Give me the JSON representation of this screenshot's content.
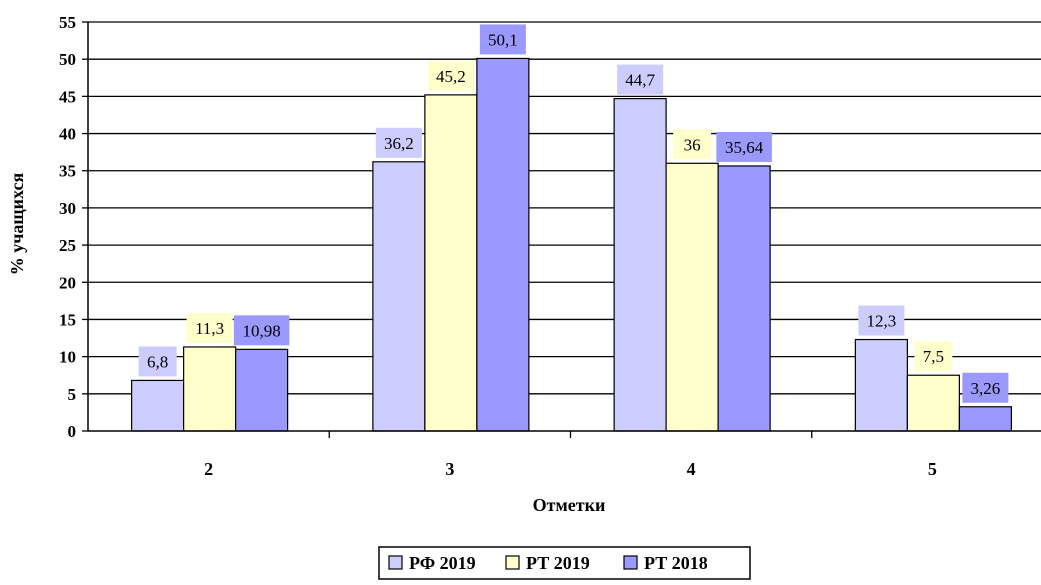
{
  "chart_data": {
    "type": "bar",
    "categories": [
      "2",
      "3",
      "4",
      "5"
    ],
    "series": [
      {
        "name": "РФ 2019",
        "values": [
          6.8,
          36.2,
          44.7,
          12.3
        ],
        "labels": [
          "6,8",
          "36,2",
          "44,7",
          "12,3"
        ],
        "color": "#ccccff",
        "label_bg": "#ccccff"
      },
      {
        "name": "РТ 2019",
        "values": [
          11.3,
          45.2,
          36,
          7.5
        ],
        "labels": [
          "11,3",
          "45,2",
          "36",
          "7,5"
        ],
        "color": "#ffffcc",
        "label_bg": "#ffffcc"
      },
      {
        "name": "РТ 2018",
        "values": [
          10.98,
          50.1,
          35.64,
          3.26
        ],
        "labels": [
          "10,98",
          "50,1",
          "35,64",
          "3,26"
        ],
        "color": "#9999ff",
        "label_bg": "#9999ff"
      }
    ],
    "xlabel": "Отметки",
    "ylabel": "% учащихся",
    "ylim": [
      0,
      55
    ],
    "yticks": [
      0,
      5,
      10,
      15,
      20,
      25,
      30,
      35,
      40,
      45,
      50,
      55
    ],
    "grid": true,
    "legend_position": "bottom"
  }
}
